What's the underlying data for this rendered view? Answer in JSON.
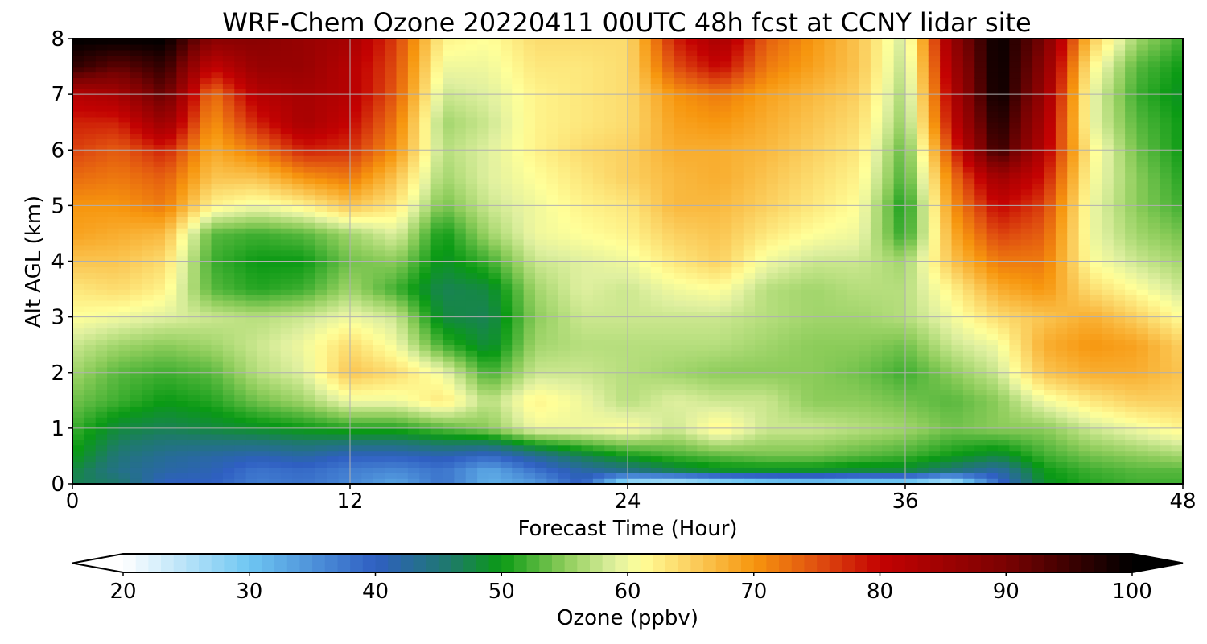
{
  "chart_data": {
    "type": "heatmap",
    "title": "WRF-Chem Ozone  20220411 00UTC 48h fcst at CCNY lidar site",
    "xlabel": "Forecast Time (Hour)",
    "ylabel": "Alt AGL (km)",
    "xlim": [
      0,
      48
    ],
    "ylim": [
      0,
      8
    ],
    "xticks": [
      "0",
      "12",
      "24",
      "36",
      "48"
    ],
    "yticks": [
      "0",
      "1",
      "2",
      "3",
      "4",
      "5",
      "6",
      "7",
      "8"
    ],
    "grid": true,
    "colorbar": {
      "label": "Ozone  (ppbv)",
      "range": [
        20,
        100
      ],
      "ticks": [
        "20",
        "30",
        "40",
        "50",
        "60",
        "70",
        "80",
        "90",
        "100"
      ],
      "extend": "both",
      "stops": [
        {
          "v": 20,
          "c": "#ffffff"
        },
        {
          "v": 30,
          "c": "#6ec6f2"
        },
        {
          "v": 40,
          "c": "#2f5fc2"
        },
        {
          "v": 46,
          "c": "#1e7a6a"
        },
        {
          "v": 50,
          "c": "#0a9a14"
        },
        {
          "v": 55,
          "c": "#8ccc5a"
        },
        {
          "v": 59,
          "c": "#e0f0a0"
        },
        {
          "v": 61,
          "c": "#ffff99"
        },
        {
          "v": 65,
          "c": "#fbd060"
        },
        {
          "v": 70,
          "c": "#f7960e"
        },
        {
          "v": 75,
          "c": "#e05010"
        },
        {
          "v": 80,
          "c": "#c40202"
        },
        {
          "v": 90,
          "c": "#7a0202"
        },
        {
          "v": 100,
          "c": "#000000"
        }
      ]
    },
    "alt_levels_km": [
      0,
      0.25,
      0.5,
      1,
      1.5,
      2,
      2.5,
      3,
      3.5,
      4,
      4.5,
      5,
      5.5,
      6,
      6.5,
      7,
      7.5,
      8
    ],
    "time_hours": [
      0,
      2,
      4,
      6,
      8,
      10,
      12,
      14,
      16,
      18,
      20,
      22,
      24,
      26,
      28,
      30,
      32,
      34,
      36,
      38,
      40,
      42,
      44,
      46,
      48
    ],
    "values_by_altitude": [
      [
        47,
        46,
        40,
        40,
        37,
        38,
        36,
        33,
        38,
        32,
        34,
        40,
        24,
        22,
        24,
        26,
        27,
        26,
        26,
        22,
        38,
        49,
        51,
        52,
        52
      ],
      [
        48,
        44,
        42,
        41,
        38,
        39,
        37,
        36,
        38,
        33,
        38,
        42,
        44,
        47,
        49,
        49,
        49,
        48,
        48,
        45,
        42,
        50,
        52,
        53,
        53
      ],
      [
        50,
        45,
        43,
        42,
        41,
        42,
        40,
        40,
        41,
        39,
        43,
        47,
        50,
        52,
        53,
        54,
        54,
        53,
        52,
        50,
        48,
        52,
        54,
        55,
        56
      ],
      [
        52,
        48,
        47,
        48,
        49,
        50,
        51,
        51,
        53,
        55,
        60,
        60,
        61,
        58,
        62,
        58,
        58,
        57,
        56,
        54,
        55,
        55,
        58,
        60,
        62
      ],
      [
        54,
        52,
        50,
        51,
        54,
        56,
        60,
        60,
        63,
        57,
        62,
        60,
        57,
        59,
        58,
        58,
        55,
        55,
        54,
        53,
        55,
        60,
        63,
        65,
        65
      ],
      [
        56,
        53,
        52,
        53,
        57,
        59,
        66,
        64,
        60,
        52,
        58,
        58,
        57,
        56,
        55,
        55,
        55,
        54,
        52,
        55,
        58,
        66,
        68,
        68,
        66
      ],
      [
        58,
        56,
        55,
        56,
        58,
        60,
        64,
        60,
        52,
        48,
        56,
        57,
        57,
        57,
        57,
        56,
        55,
        55,
        54,
        58,
        60,
        68,
        70,
        69,
        65
      ],
      [
        61,
        60,
        59,
        58,
        57,
        58,
        60,
        58,
        48,
        47,
        55,
        58,
        58,
        58,
        58,
        57,
        56,
        56,
        57,
        60,
        64,
        66,
        68,
        65,
        61
      ],
      [
        63,
        64,
        62,
        53,
        51,
        52,
        56,
        52,
        47,
        48,
        56,
        59,
        58,
        60,
        61,
        57,
        56,
        57,
        57,
        62,
        68,
        70,
        64,
        61,
        58
      ],
      [
        66,
        66,
        64,
        52,
        50,
        50,
        54,
        55,
        49,
        52,
        58,
        59,
        60,
        63,
        65,
        60,
        58,
        58,
        56,
        66,
        72,
        72,
        61,
        58,
        56
      ],
      [
        69,
        68,
        67,
        53,
        52,
        53,
        56,
        59,
        50,
        56,
        60,
        61,
        62,
        65,
        66,
        63,
        61,
        60,
        51,
        68,
        76,
        74,
        60,
        56,
        54
      ],
      [
        70,
        70,
        72,
        62,
        60,
        62,
        66,
        63,
        54,
        58,
        60,
        62,
        63,
        67,
        67,
        65,
        63,
        61,
        50,
        70,
        80,
        76,
        60,
        55,
        52
      ],
      [
        73,
        72,
        74,
        66,
        66,
        70,
        72,
        66,
        56,
        59,
        61,
        63,
        65,
        67,
        68,
        66,
        64,
        62,
        52,
        72,
        85,
        79,
        61,
        55,
        51
      ],
      [
        76,
        74,
        78,
        68,
        72,
        78,
        77,
        70,
        57,
        59,
        62,
        64,
        65,
        68,
        68,
        67,
        65,
        63,
        53,
        76,
        96,
        82,
        62,
        54,
        50
      ],
      [
        78,
        78,
        86,
        70,
        78,
        84,
        80,
        72,
        56,
        58,
        62,
        63,
        64,
        69,
        70,
        68,
        66,
        64,
        55,
        80,
        98,
        84,
        60,
        53,
        50
      ],
      [
        82,
        84,
        92,
        72,
        82,
        84,
        82,
        74,
        58,
        59,
        62,
        63,
        64,
        70,
        72,
        69,
        67,
        65,
        56,
        82,
        100,
        86,
        60,
        52,
        49
      ],
      [
        96,
        92,
        96,
        80,
        86,
        86,
        82,
        75,
        60,
        60,
        63,
        63,
        64,
        75,
        80,
        72,
        69,
        66,
        57,
        84,
        100,
        88,
        62,
        53,
        50
      ],
      [
        100,
        100,
        100,
        88,
        88,
        86,
        84,
        76,
        62,
        61,
        64,
        64,
        64,
        78,
        84,
        74,
        70,
        66,
        58,
        86,
        100,
        90,
        66,
        56,
        52
      ]
    ]
  }
}
